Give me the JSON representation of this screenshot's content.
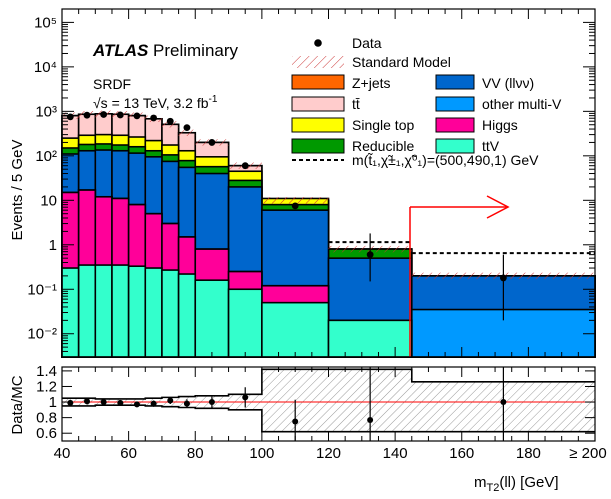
{
  "header": {
    "atlas": "ATLAS",
    "status": "Preliminary",
    "region": "SRDF",
    "sqrt_s": "√s",
    "energy_lumi": " = 13 TeV, 3.2 fb",
    "lumi_exp": "-1"
  },
  "labels": {
    "ylabel_top": "Events / 5 GeV",
    "ylabel_bottom": "Data/MC",
    "xlabel_main": "m",
    "xlabel_sub": "T2",
    "xlabel_rest": "(ll) [GeV]",
    "overflow": "≥ 200"
  },
  "legend": {
    "data": "Data",
    "standard_model": "Standard Model",
    "zjets": "Z+jets",
    "ttbar": "tt̄",
    "singletop": "Single top",
    "reducible": "Reducible",
    "vv": "VV (llνν)",
    "multiv": "other multi-V",
    "higgs": "Higgs",
    "ttv": "ttV",
    "signal": "m(t̃₁,χ̃±₁,χ̃⁰₁)=(500,490,1) GeV"
  },
  "colors": {
    "zjets": "#ff6600",
    "ttbar": "#ffcccc",
    "singletop": "#ffff00",
    "reducible": "#009900",
    "vv": "#0066cc",
    "multiv": "#0099ff",
    "higgs": "#ff0099",
    "ttv": "#33ffcc",
    "band": "#cc3333",
    "ratio_line": "#ff0000",
    "arrow": "#ff0000"
  },
  "chart_data": {
    "type": "stacked-histogram",
    "x_edges": [
      40,
      45,
      50,
      55,
      60,
      65,
      70,
      75,
      80,
      90,
      100,
      120,
      145,
      200
    ],
    "xlim": [
      40,
      200
    ],
    "ylim_log": [
      0.003,
      200000
    ],
    "stack_order_bottom_to_top": [
      "ttv",
      "higgs",
      "multiv",
      "vv",
      "reducible",
      "singletop",
      "ttbar",
      "zjets"
    ],
    "series": [
      {
        "key": "ttv",
        "name": "ttV",
        "values": [
          0.3,
          0.35,
          0.35,
          0.35,
          0.33,
          0.3,
          0.27,
          0.22,
          0.16,
          0.1,
          0.05,
          0.02,
          0.003
        ]
      },
      {
        "key": "higgs",
        "name": "Higgs",
        "values": [
          15,
          17,
          12,
          11,
          8,
          5,
          3,
          1.5,
          0.8,
          0.25,
          0.12,
          0.02,
          0.003
        ]
      },
      {
        "key": "multiv",
        "name": "other multi-V",
        "values": [
          15,
          17,
          12,
          11,
          8,
          5,
          3,
          1.5,
          0.8,
          0.25,
          0.12,
          0.02,
          0.035
        ]
      },
      {
        "key": "vv",
        "name": "VV (llνν)",
        "values": [
          110,
          130,
          135,
          130,
          115,
          95,
          75,
          55,
          40,
          20,
          6,
          0.5,
          0.2
        ]
      },
      {
        "key": "reducible",
        "name": "Reducible",
        "values": [
          150,
          180,
          185,
          175,
          160,
          130,
          105,
          78,
          57,
          28,
          8,
          0.8,
          0.2
        ]
      },
      {
        "key": "singletop",
        "name": "Single top",
        "values": [
          250,
          290,
          300,
          290,
          265,
          220,
          175,
          130,
          95,
          45,
          11,
          0.8,
          0.2
        ]
      },
      {
        "key": "ttbar",
        "name": "tt̄",
        "values": [
          800,
          860,
          880,
          860,
          800,
          680,
          510,
          330,
          200,
          60,
          10,
          0.8,
          0.2
        ]
      },
      {
        "key": "zjets",
        "name": "Z+jets",
        "values": [
          800,
          860,
          880,
          860,
          800,
          680,
          510,
          330,
          200,
          60,
          10,
          0.8,
          0.2
        ]
      }
    ],
    "standard_model": [
      800,
      860,
      880,
      860,
      800,
      680,
      510,
      330,
      200,
      60,
      10,
      0.8,
      0.2
    ],
    "data": {
      "x": [
        42.5,
        47.5,
        52.5,
        57.5,
        62.5,
        67.5,
        72.5,
        77.5,
        85,
        95,
        110,
        132.5,
        172.5
      ],
      "y": [
        750,
        820,
        850,
        830,
        790,
        710,
        600,
        430,
        200,
        60,
        7.5,
        0.6,
        0.18
      ],
      "err_low": [
        null,
        null,
        null,
        null,
        null,
        null,
        null,
        null,
        null,
        null,
        null,
        0.45,
        0.16
      ],
      "err_high": [
        null,
        null,
        null,
        null,
        null,
        null,
        null,
        null,
        null,
        null,
        null,
        1.2,
        0.42
      ]
    },
    "signal": {
      "name": "m(t̃₁,χ̃±₁,χ̃⁰₁)=(500,490,1) GeV",
      "values": [
        null,
        null,
        null,
        null,
        null,
        null,
        null,
        null,
        null,
        null,
        null,
        1.15,
        0.65
      ]
    },
    "y_ticks_main": [
      "10⁻²",
      "10⁻¹",
      "1",
      "10",
      "10²",
      "10³",
      "10⁴",
      "10⁵"
    ],
    "y_tick_values_main": [
      0.01,
      0.1,
      1,
      10,
      100,
      1000,
      10000,
      100000
    ],
    "ratio": {
      "ylim": [
        0.5,
        1.45
      ],
      "yticks": [
        0.6,
        0.8,
        1,
        1.2,
        1.4
      ],
      "ytick_labels": [
        "0.6",
        "0.8",
        "1",
        "1.2",
        "1.4"
      ],
      "band_low": [
        0.95,
        0.95,
        0.96,
        0.96,
        0.96,
        0.95,
        0.94,
        0.93,
        0.92,
        0.9,
        0.62,
        0.62,
        0.62
      ],
      "band_high": [
        1.05,
        1.05,
        1.04,
        1.04,
        1.04,
        1.05,
        1.06,
        1.07,
        1.08,
        1.1,
        1.42,
        1.42,
        1.26
      ],
      "x": [
        42.5,
        47.5,
        52.5,
        57.5,
        62.5,
        67.5,
        72.5,
        77.5,
        85,
        95,
        110,
        132.5,
        172.5
      ],
      "y": [
        0.99,
        1.01,
        1.0,
        0.99,
        0.97,
        0.98,
        1.02,
        0.98,
        1.0,
        1.06,
        0.75,
        0.77,
        1.0
      ],
      "err": [
        0.04,
        0.04,
        0.035,
        0.035,
        0.035,
        0.04,
        0.045,
        0.055,
        0.07,
        0.13,
        0.28,
        0.95,
        0.95
      ]
    },
    "x_ticks": [
      40,
      60,
      80,
      100,
      120,
      140,
      160,
      180
    ],
    "x_tick_labels": [
      "40",
      "60",
      "80",
      "100",
      "120",
      "140",
      "160",
      "180"
    ]
  }
}
